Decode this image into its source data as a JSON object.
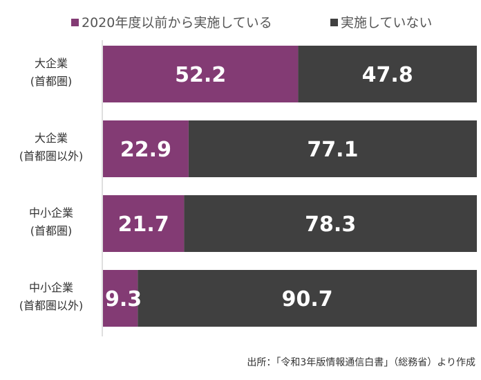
{
  "chart_data": {
    "type": "bar",
    "orientation": "horizontal",
    "stacked": true,
    "categories": [
      [
        "大企業",
        "(首都圏)"
      ],
      [
        "大企業",
        "(首都圏以外)"
      ],
      [
        "中小企業",
        "(首都圏)"
      ],
      [
        "中小企業",
        "(首都圏以外)"
      ]
    ],
    "series": [
      {
        "name": "2020年度以前から実施している",
        "values": [
          52.2,
          22.9,
          21.7,
          9.3
        ],
        "color": "#833b74"
      },
      {
        "name": "実施していない",
        "values": [
          47.8,
          77.1,
          78.3,
          90.7
        ],
        "color": "#404040"
      }
    ],
    "xlim": [
      0,
      100
    ],
    "legend_position": "top",
    "grid": false,
    "source": "出所：「令和3年版情報通信白書」（総務省）より作成"
  }
}
